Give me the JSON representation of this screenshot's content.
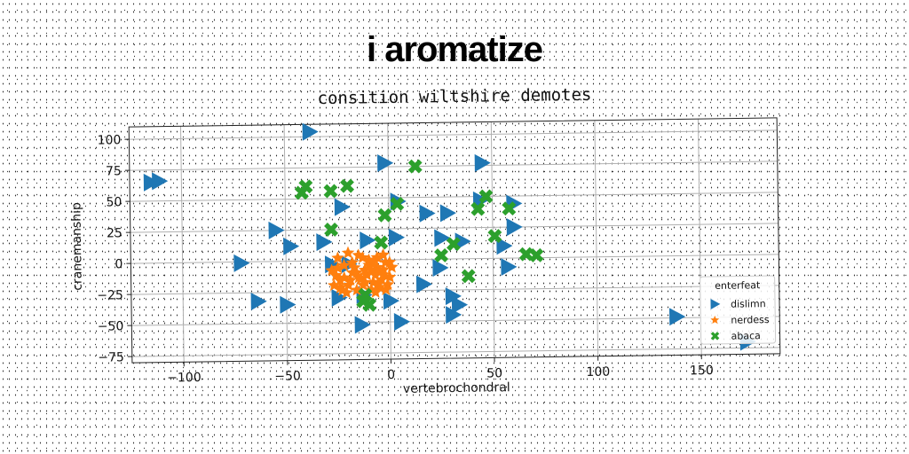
{
  "main_title": "i aromatize",
  "colors": {
    "dislimn": "#1f77b4",
    "nerdess": "#ff7f0e",
    "abaca": "#2ca02c"
  },
  "chart_data": {
    "type": "scatter",
    "title": "consition wiltshire demotes",
    "xlabel": "vertebrochondral",
    "ylabel": "cranemanship",
    "xlim": [
      -125,
      188
    ],
    "ylim": [
      -80,
      110
    ],
    "xticks": [
      -100,
      -50,
      0,
      50,
      100,
      150
    ],
    "yticks": [
      -75,
      -50,
      -25,
      0,
      25,
      50,
      75,
      100
    ],
    "xtick_labels": [
      "−100",
      "−50",
      "0",
      "50",
      "100",
      "150"
    ],
    "ytick_labels": [
      "−75",
      "−50",
      "−25",
      "0",
      "25",
      "50",
      "75",
      "100"
    ],
    "grid": true,
    "legend": {
      "title": "enterfeat",
      "placement": "lower-right"
    },
    "series": [
      {
        "name": "dislimn",
        "marker": "triangle-right",
        "color": "#1f77b4",
        "points": [
          [
            -38,
            104
          ],
          [
            -111,
            66
          ],
          [
            -2,
            78
          ],
          [
            45,
            77
          ],
          [
            -115,
            65
          ],
          [
            4,
            47
          ],
          [
            18,
            37
          ],
          [
            -23,
            43
          ],
          [
            44,
            47
          ],
          [
            28,
            37
          ],
          [
            60,
            44
          ],
          [
            -55,
            25
          ],
          [
            -48,
            12
          ],
          [
            -32,
            15
          ],
          [
            -11,
            16
          ],
          [
            3,
            18
          ],
          [
            25,
            17
          ],
          [
            35,
            14
          ],
          [
            55,
            10
          ],
          [
            60,
            25
          ],
          [
            -72,
            -1
          ],
          [
            -28,
            -3
          ],
          [
            -20,
            -3
          ],
          [
            24,
            -7
          ],
          [
            57,
            -7
          ],
          [
            -64,
            -32
          ],
          [
            -50,
            -35
          ],
          [
            -25,
            -30
          ],
          [
            -13,
            -28
          ],
          [
            0,
            -33
          ],
          [
            16,
            -20
          ],
          [
            30,
            -30
          ],
          [
            33,
            -37
          ],
          [
            -14,
            -52
          ],
          [
            5,
            -50
          ],
          [
            30,
            -45
          ],
          [
            138,
            -49
          ],
          [
            172,
            -70
          ]
        ]
      },
      {
        "name": "nerdess",
        "marker": "star",
        "color": "#ff7f0e",
        "points": [
          [
            -25,
            2
          ],
          [
            -22,
            -4
          ],
          [
            -18,
            -10
          ],
          [
            -14,
            -15
          ],
          [
            -10,
            -4
          ],
          [
            -6,
            2
          ],
          [
            -3,
            -8
          ],
          [
            0,
            -14
          ],
          [
            -24,
            -16
          ],
          [
            -20,
            -20
          ],
          [
            -16,
            -24
          ],
          [
            -12,
            -8
          ],
          [
            -8,
            -18
          ],
          [
            -5,
            -22
          ],
          [
            -2,
            -2
          ],
          [
            1,
            -6
          ],
          [
            -28,
            -8
          ],
          [
            -26,
            -12
          ],
          [
            -20,
            6
          ],
          [
            -15,
            4
          ],
          [
            -10,
            0
          ],
          [
            -7,
            -12
          ],
          [
            -4,
            -16
          ],
          [
            -1,
            -20
          ],
          [
            -23,
            -24
          ],
          [
            -18,
            -2
          ],
          [
            -13,
            -20
          ],
          [
            -9,
            -24
          ],
          [
            -6,
            -6
          ],
          [
            -3,
            4
          ],
          [
            -27,
            -20
          ],
          [
            -22,
            -14
          ],
          [
            -17,
            -6
          ],
          [
            -11,
            -12
          ],
          [
            -8,
            -2
          ],
          [
            -5,
            -10
          ],
          [
            -2,
            -24
          ],
          [
            -21,
            -26
          ],
          [
            -15,
            -14
          ],
          [
            -12,
            -18
          ],
          [
            -9,
            -8
          ],
          [
            -6,
            -20
          ],
          [
            -3,
            -12
          ],
          [
            0,
            -2
          ],
          [
            -25,
            -6
          ],
          [
            -19,
            -16
          ],
          [
            -16,
            -10
          ],
          [
            -7,
            -26
          ],
          [
            -13,
            2
          ],
          [
            -24,
            -22
          ]
        ]
      },
      {
        "name": "abaca",
        "marker": "x",
        "color": "#2ca02c",
        "points": [
          [
            13,
            75
          ],
          [
            -40,
            60
          ],
          [
            -42,
            55
          ],
          [
            -28,
            56
          ],
          [
            -20,
            60
          ],
          [
            -2,
            36
          ],
          [
            4,
            45
          ],
          [
            47,
            50
          ],
          [
            43,
            40
          ],
          [
            58,
            40
          ],
          [
            -28,
            25
          ],
          [
            -4,
            14
          ],
          [
            51,
            18
          ],
          [
            31,
            12
          ],
          [
            25,
            3
          ],
          [
            66,
            3
          ],
          [
            71,
            2
          ],
          [
            38,
            -14
          ],
          [
            -12,
            -28
          ],
          [
            -13,
            -33
          ],
          [
            -10,
            -36
          ]
        ]
      }
    ]
  }
}
